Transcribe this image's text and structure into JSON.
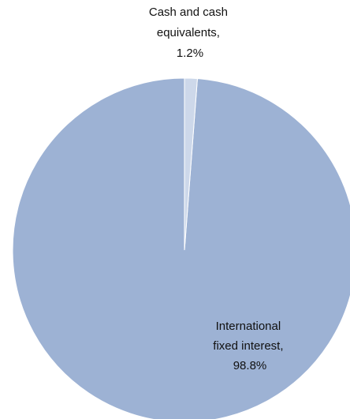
{
  "chart_data": {
    "type": "pie",
    "title": "",
    "slices": [
      {
        "label_lines": [
          "International",
          "fixed interest,",
          "98.8%"
        ],
        "name": "International fixed interest",
        "value": 98.8,
        "color": "#9db2d4"
      },
      {
        "label_lines": [
          "Cash and cash",
          "equivalents,",
          "1.2%"
        ],
        "name": "Cash and cash equivalents",
        "value": 1.2,
        "color": "#cdd8ea"
      }
    ],
    "start_angle": "12 o'clock",
    "direction": "counterclockwise",
    "legend": "none",
    "slice_border_color": "#ffffff"
  }
}
